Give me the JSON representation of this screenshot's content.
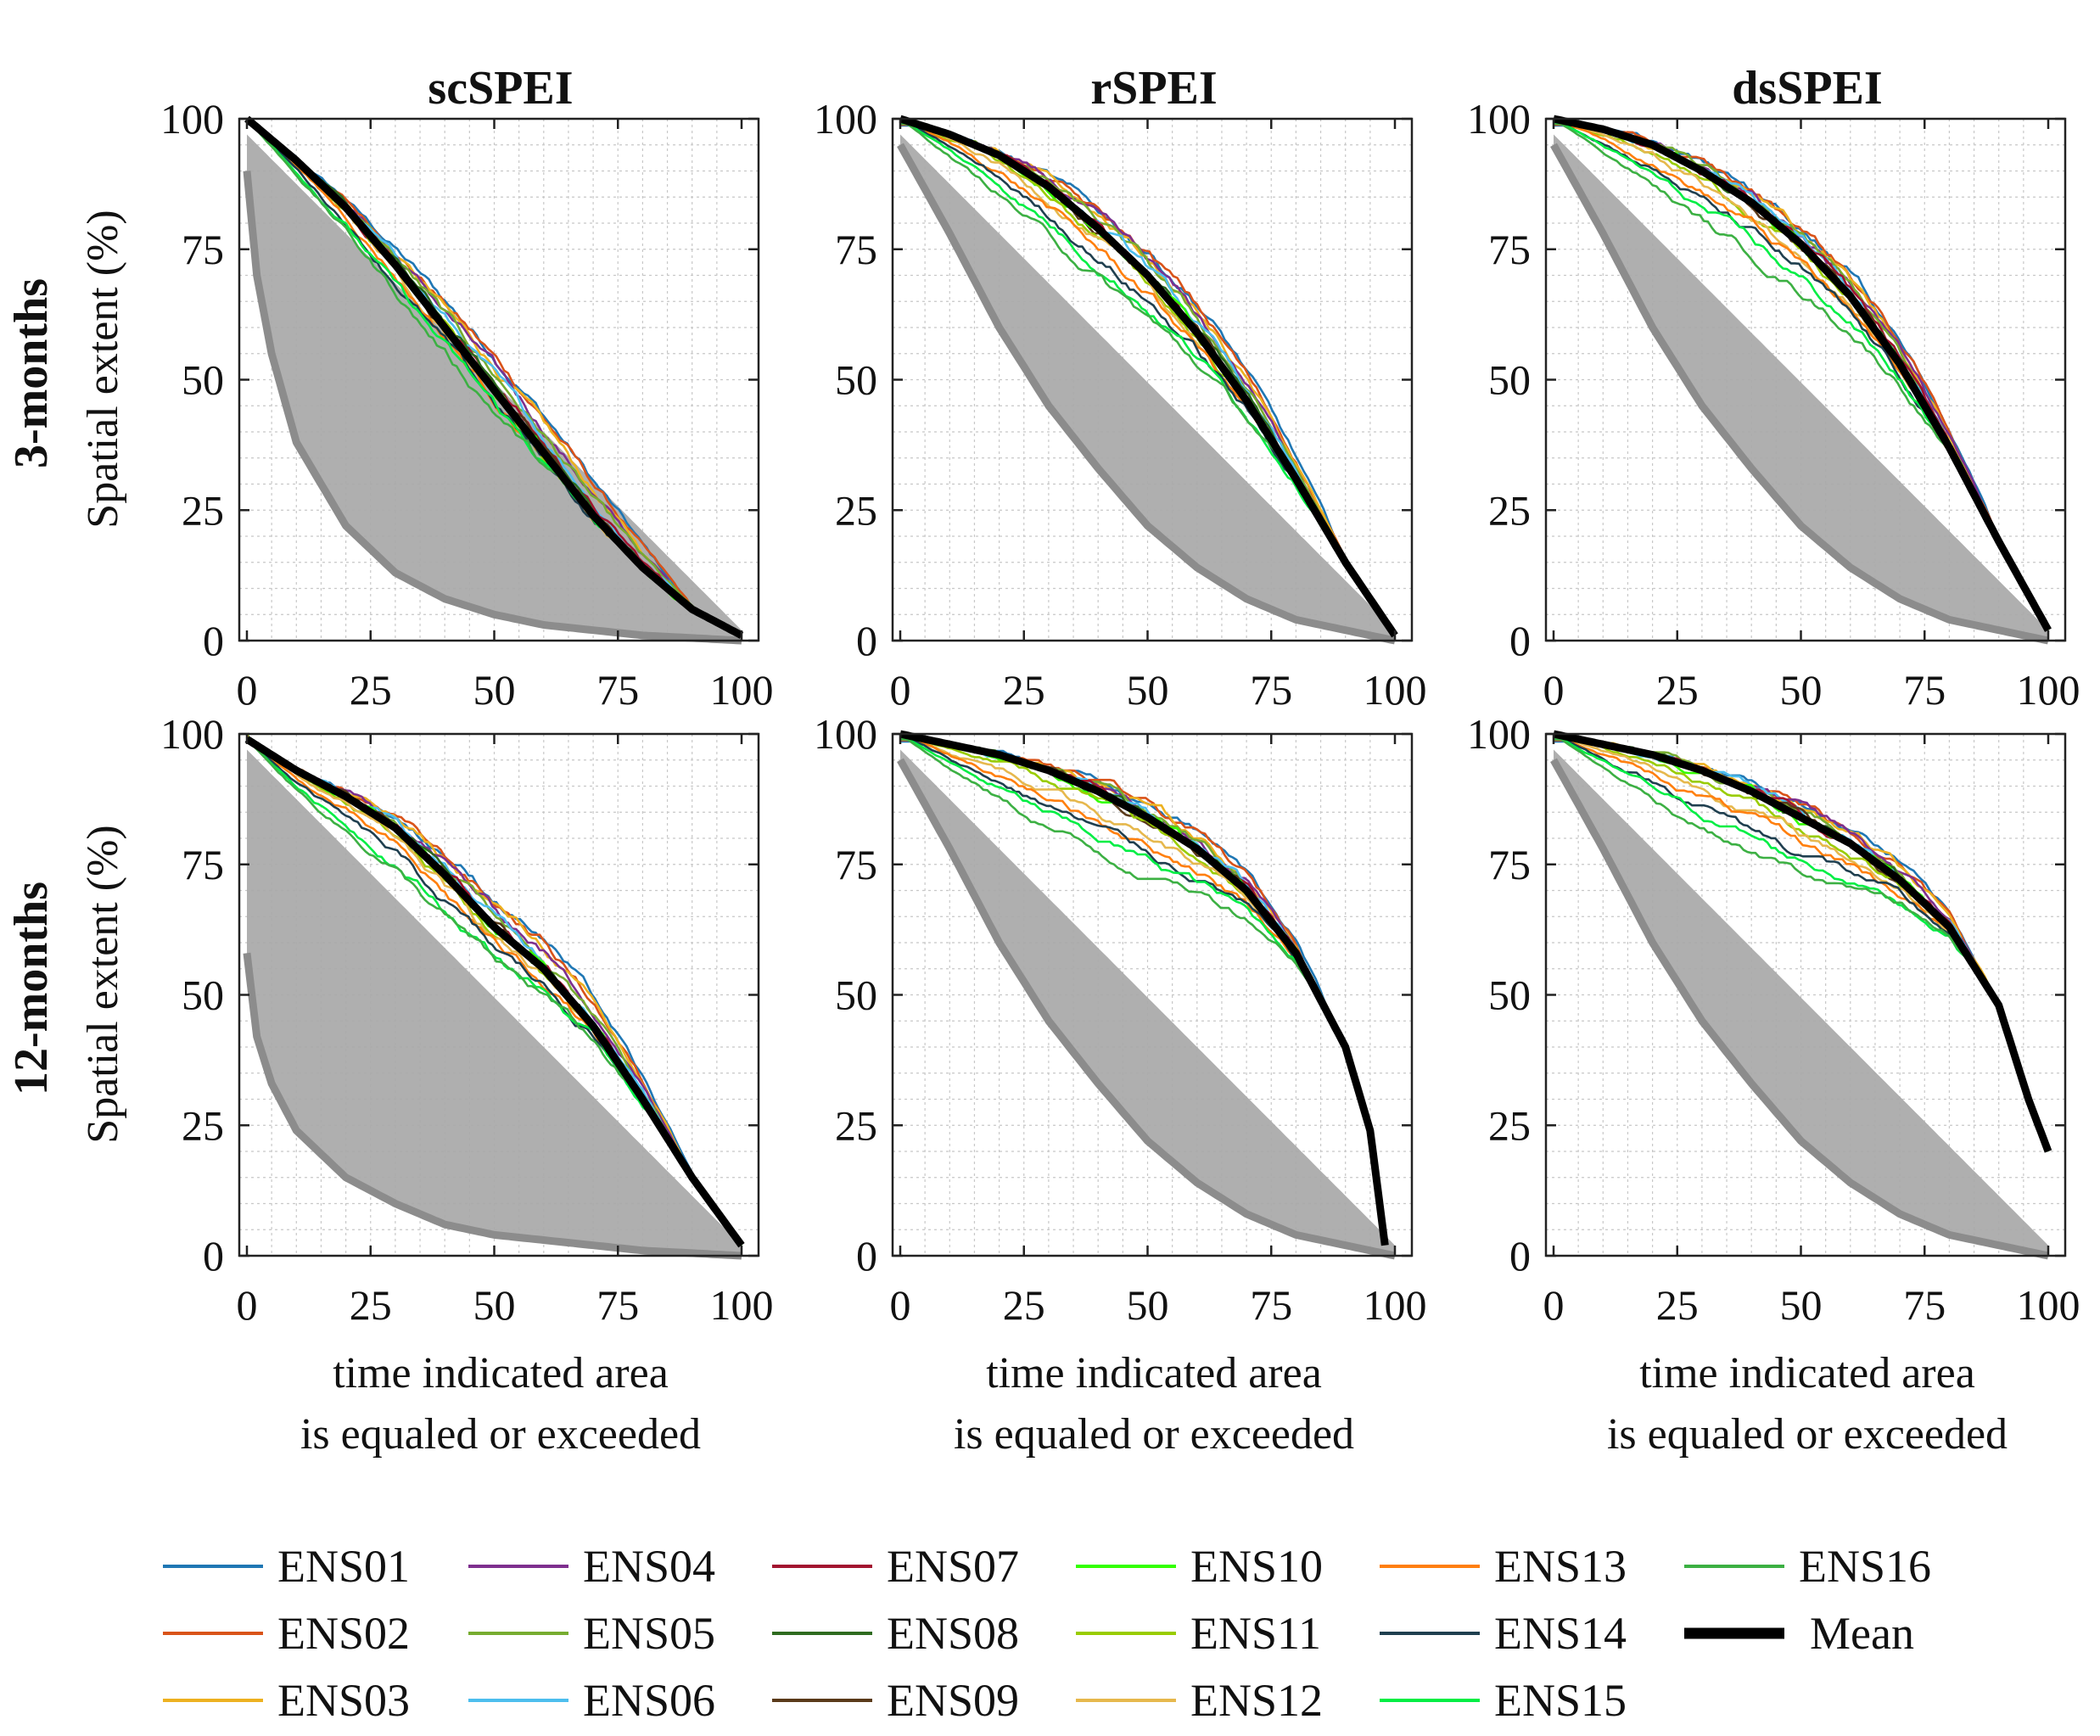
{
  "figure": {
    "column_titles": [
      "scSPEI",
      "rSPEI",
      "dsSPEI"
    ],
    "row_labels": [
      "3-months",
      "12-months"
    ],
    "ylabel": "Spatial extent (%)",
    "xlabel_line1": "time indicated area",
    "xlabel_line2": "is equaled or exceeded",
    "ticks": [
      "0",
      "25",
      "50",
      "75",
      "100"
    ]
  },
  "chart_data": [
    {
      "type": "line",
      "title": "scSPEI",
      "row": "3-months",
      "xlabel": "time indicated area is equaled or exceeded",
      "ylabel": "Spatial extent (%)",
      "xlim": [
        0,
        100
      ],
      "ylim": [
        0,
        100
      ],
      "grid": true,
      "shaded_envelope": {
        "upper": [
          [
            0,
            97
          ],
          [
            100,
            2
          ]
        ],
        "lower": [
          [
            0,
            90
          ],
          [
            2,
            70
          ],
          [
            5,
            55
          ],
          [
            10,
            38
          ],
          [
            20,
            22
          ],
          [
            30,
            13
          ],
          [
            40,
            8
          ],
          [
            50,
            5
          ],
          [
            60,
            3
          ],
          [
            70,
            2
          ],
          [
            80,
            1
          ],
          [
            100,
            0
          ]
        ]
      },
      "mean": [
        [
          0,
          100
        ],
        [
          10,
          92
        ],
        [
          20,
          83
        ],
        [
          30,
          72
        ],
        [
          40,
          60
        ],
        [
          50,
          48
        ],
        [
          60,
          36
        ],
        [
          70,
          24
        ],
        [
          80,
          14
        ],
        [
          90,
          6
        ],
        [
          100,
          1
        ]
      ],
      "spread": [
        0.13,
        0.12,
        0.09,
        0.08,
        0.06,
        0.05,
        0.03,
        0.02,
        0.01,
        0,
        -0.01,
        -0.02,
        -0.03,
        -0.05,
        -0.06,
        -0.08
      ]
    },
    {
      "type": "line",
      "title": "rSPEI",
      "row": "3-months",
      "xlabel": "time indicated area is equaled or exceeded",
      "ylabel": "Spatial extent (%)",
      "xlim": [
        0,
        100
      ],
      "ylim": [
        0,
        100
      ],
      "grid": true,
      "shaded_envelope": {
        "upper": [
          [
            0,
            97
          ],
          [
            100,
            2
          ]
        ],
        "lower": [
          [
            0,
            95
          ],
          [
            10,
            78
          ],
          [
            20,
            60
          ],
          [
            30,
            45
          ],
          [
            40,
            33
          ],
          [
            50,
            22
          ],
          [
            60,
            14
          ],
          [
            70,
            8
          ],
          [
            80,
            4
          ],
          [
            90,
            2
          ],
          [
            100,
            0
          ]
        ]
      },
      "mean": [
        [
          0,
          100
        ],
        [
          10,
          97
        ],
        [
          20,
          93
        ],
        [
          30,
          87
        ],
        [
          40,
          79
        ],
        [
          50,
          70
        ],
        [
          60,
          59
        ],
        [
          70,
          46
        ],
        [
          80,
          31
        ],
        [
          90,
          15
        ],
        [
          100,
          1
        ]
      ],
      "spread": [
        0.16,
        0.14,
        0.11,
        0.09,
        0.07,
        0.05,
        0.03,
        0.02,
        0.01,
        0,
        -0.02,
        -0.03,
        -0.05,
        -0.07,
        -0.09,
        -0.12
      ]
    },
    {
      "type": "line",
      "title": "dsSPEI",
      "row": "3-months",
      "xlabel": "time indicated area is equaled or exceeded",
      "ylabel": "Spatial extent (%)",
      "xlim": [
        0,
        100
      ],
      "ylim": [
        0,
        100
      ],
      "grid": true,
      "shaded_envelope": {
        "upper": [
          [
            0,
            97
          ],
          [
            100,
            2
          ]
        ],
        "lower": [
          [
            0,
            95
          ],
          [
            10,
            78
          ],
          [
            20,
            60
          ],
          [
            30,
            45
          ],
          [
            40,
            33
          ],
          [
            50,
            22
          ],
          [
            60,
            14
          ],
          [
            70,
            8
          ],
          [
            80,
            4
          ],
          [
            90,
            2
          ],
          [
            100,
            0
          ]
        ]
      },
      "mean": [
        [
          0,
          100
        ],
        [
          10,
          98
        ],
        [
          20,
          95
        ],
        [
          30,
          90
        ],
        [
          40,
          84
        ],
        [
          50,
          76
        ],
        [
          60,
          66
        ],
        [
          70,
          53
        ],
        [
          80,
          37
        ],
        [
          90,
          19
        ],
        [
          100,
          2
        ]
      ],
      "spread": [
        0.16,
        0.14,
        0.11,
        0.09,
        0.07,
        0.05,
        0.03,
        0.02,
        0.01,
        0,
        -0.02,
        -0.03,
        -0.05,
        -0.07,
        -0.09,
        -0.12
      ]
    },
    {
      "type": "line",
      "title": "scSPEI",
      "row": "12-months",
      "xlabel": "time indicated area is equaled or exceeded",
      "ylabel": "Spatial extent (%)",
      "xlim": [
        0,
        100
      ],
      "ylim": [
        0,
        100
      ],
      "grid": true,
      "shaded_envelope": {
        "upper": [
          [
            0,
            97
          ],
          [
            100,
            2
          ]
        ],
        "lower": [
          [
            0,
            58
          ],
          [
            2,
            42
          ],
          [
            5,
            33
          ],
          [
            10,
            24
          ],
          [
            20,
            15
          ],
          [
            30,
            10
          ],
          [
            40,
            6
          ],
          [
            50,
            4
          ],
          [
            60,
            3
          ],
          [
            70,
            2
          ],
          [
            80,
            1
          ],
          [
            100,
            0
          ]
        ]
      },
      "mean": [
        [
          0,
          99
        ],
        [
          10,
          93
        ],
        [
          20,
          88
        ],
        [
          30,
          82
        ],
        [
          40,
          73
        ],
        [
          50,
          63
        ],
        [
          60,
          55
        ],
        [
          70,
          44
        ],
        [
          80,
          30
        ],
        [
          90,
          15
        ],
        [
          100,
          2
        ]
      ],
      "spread": [
        0.15,
        0.13,
        0.11,
        0.09,
        0.07,
        0.05,
        0.03,
        0.02,
        0.01,
        0,
        -0.02,
        -0.03,
        -0.05,
        -0.07,
        -0.09,
        -0.11
      ]
    },
    {
      "type": "line",
      "title": "rSPEI",
      "row": "12-months",
      "xlabel": "time indicated area is equaled or exceeded",
      "ylabel": "Spatial extent (%)",
      "xlim": [
        0,
        100
      ],
      "ylim": [
        0,
        100
      ],
      "grid": true,
      "shaded_envelope": {
        "upper": [
          [
            0,
            97
          ],
          [
            100,
            2
          ]
        ],
        "lower": [
          [
            0,
            95
          ],
          [
            10,
            78
          ],
          [
            20,
            60
          ],
          [
            30,
            45
          ],
          [
            40,
            33
          ],
          [
            50,
            22
          ],
          [
            60,
            14
          ],
          [
            70,
            8
          ],
          [
            80,
            4
          ],
          [
            90,
            2
          ],
          [
            100,
            0
          ]
        ]
      },
      "mean": [
        [
          0,
          100
        ],
        [
          10,
          98
        ],
        [
          20,
          96
        ],
        [
          30,
          93
        ],
        [
          40,
          89
        ],
        [
          50,
          84
        ],
        [
          60,
          78
        ],
        [
          70,
          70
        ],
        [
          80,
          58
        ],
        [
          90,
          40
        ],
        [
          95,
          24
        ],
        [
          98,
          2
        ]
      ],
      "spread": [
        0.18,
        0.15,
        0.12,
        0.1,
        0.08,
        0.05,
        0.03,
        0.02,
        0.01,
        0,
        -0.02,
        -0.04,
        -0.06,
        -0.08,
        -0.1,
        -0.13
      ]
    },
    {
      "type": "line",
      "title": "dsSPEI",
      "row": "12-months",
      "xlabel": "time indicated area is equaled or exceeded",
      "ylabel": "Spatial extent (%)",
      "xlim": [
        0,
        100
      ],
      "ylim": [
        0,
        100
      ],
      "grid": true,
      "shaded_envelope": {
        "upper": [
          [
            0,
            97
          ],
          [
            100,
            2
          ]
        ],
        "lower": [
          [
            0,
            95
          ],
          [
            10,
            78
          ],
          [
            20,
            60
          ],
          [
            30,
            45
          ],
          [
            40,
            33
          ],
          [
            50,
            22
          ],
          [
            60,
            14
          ],
          [
            70,
            8
          ],
          [
            80,
            4
          ],
          [
            90,
            2
          ],
          [
            100,
            0
          ]
        ]
      },
      "mean": [
        [
          0,
          100
        ],
        [
          10,
          98
        ],
        [
          20,
          96
        ],
        [
          30,
          93
        ],
        [
          40,
          89
        ],
        [
          50,
          84
        ],
        [
          60,
          79
        ],
        [
          70,
          72
        ],
        [
          80,
          63
        ],
        [
          90,
          48
        ],
        [
          96,
          30
        ],
        [
          100,
          20
        ]
      ],
      "spread": [
        0.18,
        0.15,
        0.12,
        0.1,
        0.08,
        0.05,
        0.03,
        0.02,
        0.01,
        0,
        -0.02,
        -0.04,
        -0.06,
        -0.08,
        -0.1,
        -0.13
      ]
    }
  ],
  "legend": {
    "position": "bottom",
    "series": [
      {
        "name": "ENS01",
        "color": "#1f77b4"
      },
      {
        "name": "ENS02",
        "color": "#d95319"
      },
      {
        "name": "ENS03",
        "color": "#edb120"
      },
      {
        "name": "ENS04",
        "color": "#7e2f8e"
      },
      {
        "name": "ENS05",
        "color": "#77ac30"
      },
      {
        "name": "ENS06",
        "color": "#4dbeee"
      },
      {
        "name": "ENS07",
        "color": "#a2142f"
      },
      {
        "name": "ENS08",
        "color": "#2e6b1f"
      },
      {
        "name": "ENS09",
        "color": "#5a3a1a"
      },
      {
        "name": "ENS10",
        "color": "#33ff00"
      },
      {
        "name": "ENS11",
        "color": "#99cc00"
      },
      {
        "name": "ENS12",
        "color": "#e6b84d"
      },
      {
        "name": "ENS13",
        "color": "#ff7f0e"
      },
      {
        "name": "ENS14",
        "color": "#1f3f4f"
      },
      {
        "name": "ENS15",
        "color": "#00ee44"
      },
      {
        "name": "ENS16",
        "color": "#3cb043"
      },
      {
        "name": "Mean",
        "color": "#000000"
      }
    ]
  },
  "colors": {
    "envelope_fill": "#a8a8a8",
    "envelope_edge": "#8c8c8c",
    "grid": "#c8c8c8",
    "axis": "#222222"
  }
}
